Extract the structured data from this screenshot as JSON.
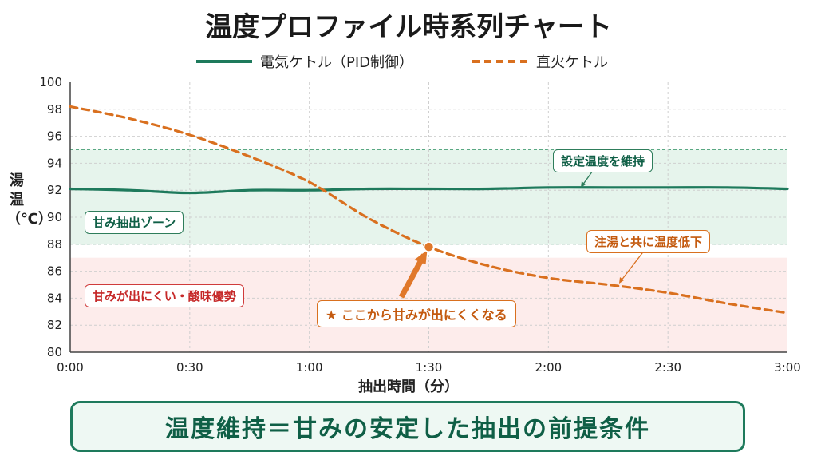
{
  "chart_data": {
    "type": "line",
    "title": "温度プロファイル時系列チャート",
    "xlabel": "抽出時間（分）",
    "ylabel": "湯温（℃）",
    "x_tick_labels": [
      "0:00",
      "0:30",
      "1:00",
      "1:30",
      "2:00",
      "2:30",
      "3:00"
    ],
    "y_tick_labels": [
      "80",
      "82",
      "84",
      "86",
      "88",
      "90",
      "92",
      "94",
      "96",
      "98",
      "100"
    ],
    "xlim_seconds": [
      0,
      180
    ],
    "ylim": [
      80,
      100
    ],
    "grid": true,
    "legend_position": "top",
    "series": [
      {
        "name": "電気ケトル（PID制御）",
        "color": "#1e7a5c",
        "style": "solid",
        "x_seconds": [
          0,
          15,
          30,
          45,
          60,
          75,
          90,
          105,
          120,
          135,
          150,
          165,
          180
        ],
        "values": [
          92.1,
          92.0,
          91.8,
          92.0,
          92.0,
          92.1,
          92.1,
          92.1,
          92.2,
          92.2,
          92.2,
          92.2,
          92.1
        ]
      },
      {
        "name": "直火ケトル",
        "color": "#d9701f",
        "style": "dashed",
        "x_seconds": [
          0,
          15,
          30,
          45,
          60,
          75,
          90,
          105,
          120,
          135,
          150,
          165,
          180
        ],
        "values": [
          98.2,
          97.3,
          96.1,
          94.5,
          92.6,
          89.9,
          87.8,
          86.4,
          85.5,
          85.0,
          84.4,
          83.6,
          82.9
        ]
      }
    ],
    "bands": [
      {
        "label": "甘み抽出ゾーン",
        "ymin": 88,
        "ymax": 95,
        "color": "#e6f4ec"
      },
      {
        "label": "甘みが出にくい・酸味優勢",
        "ymin": 80,
        "ymax": 87,
        "color": "#fdeceb"
      }
    ],
    "annotations": [
      {
        "text": "設定温度を維持"
      },
      {
        "text": "注湯と共に温度低下"
      },
      {
        "text": "ここから甘みが出にくくなる",
        "star": "★",
        "x_seconds": 90,
        "y": 87.8
      }
    ]
  },
  "footer": {
    "text": "温度維持＝甘みの安定した抽出の前提条件"
  }
}
